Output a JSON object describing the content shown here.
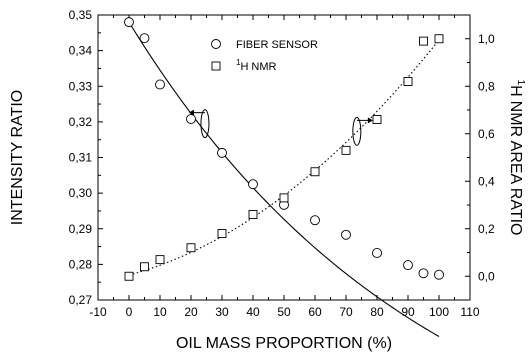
{
  "chart_data": {
    "type": "scatter",
    "xlabel": "OIL MASS PROPORTION (%)",
    "ylabel": "INTENSITY RATIO",
    "y2label": "NMR AREA RATIO",
    "y2label_sup": "1",
    "y2label_prefix": "H",
    "xlim": [
      -10,
      110
    ],
    "ylim": [
      0.27,
      0.35
    ],
    "y2lim": [
      -0.1,
      1.1
    ],
    "x_ticks": [
      "-10",
      "0",
      "10",
      "20",
      "30",
      "40",
      "50",
      "60",
      "70",
      "80",
      "90",
      "100",
      "110"
    ],
    "y_ticks": [
      "0,27",
      "0,28",
      "0,29",
      "0,30",
      "0,31",
      "0,32",
      "0,33",
      "0,34",
      "0,35"
    ],
    "y2_ticks": [
      "0,0",
      "0,2",
      "0,4",
      "0,6",
      "0,8",
      "1,0"
    ],
    "legend_position": "top-center",
    "series": [
      {
        "name": "FIBER SENSOR",
        "marker": "circle",
        "axis": "left",
        "fit": "solid",
        "x": [
          0,
          5,
          10,
          20,
          30,
          40,
          50,
          60,
          70,
          80,
          90,
          95,
          100
        ],
        "y": [
          0.348,
          0.3435,
          0.3305,
          0.3208,
          0.3113,
          0.3025,
          0.2967,
          0.2924,
          0.2883,
          0.2832,
          0.2798,
          0.2775,
          0.2771
        ]
      },
      {
        "name": "NMR",
        "name_sup": "1",
        "name_prefix": "H",
        "marker": "square",
        "axis": "right",
        "fit": "dotted",
        "x": [
          0,
          5,
          10,
          20,
          30,
          40,
          50,
          60,
          70,
          80,
          90,
          95,
          100
        ],
        "y": [
          0.0,
          0.04,
          0.07,
          0.12,
          0.18,
          0.26,
          0.33,
          0.44,
          0.53,
          0.66,
          0.82,
          0.99,
          1.0
        ]
      }
    ]
  }
}
